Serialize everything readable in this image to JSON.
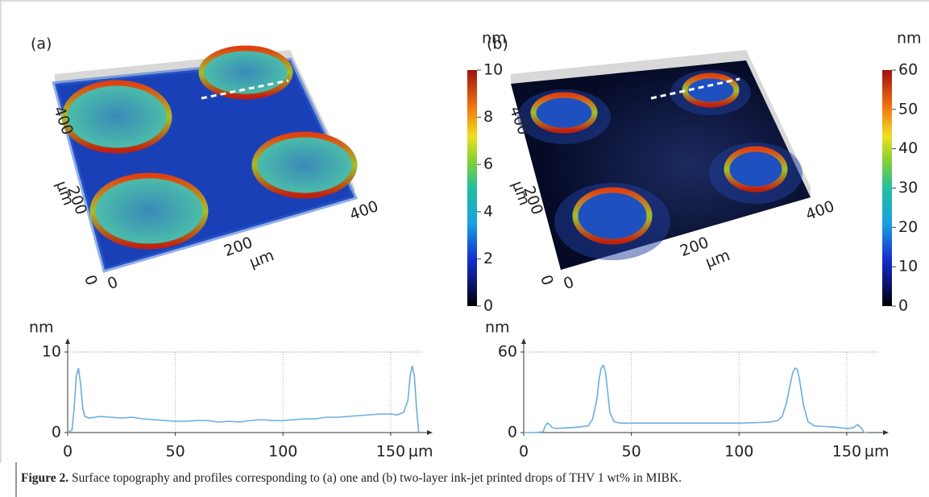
{
  "panels": [
    {
      "label": "(a)",
      "colorbar": {
        "unit": "nm",
        "lim": [
          0,
          10
        ],
        "ticks": [
          0,
          2,
          4,
          6,
          8,
          10
        ]
      },
      "surface": {
        "lim": [
          0,
          400
        ],
        "x_ticks": [
          0,
          200,
          400
        ],
        "y_ticks": [
          0,
          200,
          400
        ],
        "x_unit": "µm",
        "y_unit": "µm"
      }
    },
    {
      "label": "(b)",
      "colorbar": {
        "unit": "nm",
        "lim": [
          0,
          60
        ],
        "ticks": [
          0,
          10,
          20,
          30,
          40,
          50,
          60
        ]
      },
      "surface": {
        "lim": [
          0,
          400
        ],
        "x_ticks": [
          0,
          200,
          400
        ],
        "y_ticks": [
          0,
          200,
          400
        ],
        "x_unit": "µm",
        "y_unit": "µm"
      }
    }
  ],
  "chart_data": [
    {
      "type": "line",
      "xlabel": "µm",
      "ylabel": "nm",
      "color": "#6aaee0",
      "xlim": [
        0,
        165
      ],
      "xticks": [
        0,
        50,
        100,
        150
      ],
      "ylim": [
        0,
        10
      ],
      "yticks": [
        0,
        10
      ],
      "grid": true,
      "x": [
        0,
        2,
        3,
        4,
        5,
        6,
        7,
        8,
        10,
        15,
        20,
        25,
        30,
        35,
        40,
        45,
        50,
        55,
        60,
        65,
        70,
        75,
        80,
        85,
        90,
        95,
        100,
        105,
        110,
        115,
        120,
        125,
        130,
        135,
        140,
        145,
        150,
        153,
        156,
        158,
        159,
        160,
        161,
        162,
        163
      ],
      "values": [
        0,
        0.3,
        3,
        7,
        8,
        6,
        3,
        2,
        1.8,
        2,
        1.9,
        1.8,
        1.9,
        1.7,
        1.6,
        1.5,
        1.4,
        1.4,
        1.5,
        1.5,
        1.3,
        1.4,
        1.3,
        1.5,
        1.6,
        1.5,
        1.5,
        1.6,
        1.7,
        1.7,
        1.9,
        1.9,
        2,
        2.1,
        2.2,
        2.3,
        2.3,
        2.2,
        2.5,
        4,
        7,
        8.3,
        7,
        3,
        0
      ]
    },
    {
      "type": "line",
      "xlabel": "µm",
      "ylabel": "nm",
      "color": "#6aaee0",
      "xlim": [
        0,
        165
      ],
      "xticks": [
        0,
        50,
        100,
        150
      ],
      "ylim": [
        0,
        60
      ],
      "yticks": [
        0,
        60
      ],
      "grid": true,
      "x": [
        0,
        5,
        9,
        10,
        11,
        12,
        13,
        15,
        20,
        25,
        30,
        32,
        34,
        35,
        36,
        37,
        38,
        39,
        40,
        42,
        45,
        50,
        60,
        70,
        80,
        90,
        100,
        110,
        115,
        118,
        120,
        122,
        124,
        125,
        126,
        127,
        128,
        130,
        132,
        135,
        140,
        145,
        150,
        153,
        155,
        157,
        158,
        160
      ],
      "values": [
        0,
        0,
        0.5,
        5,
        7,
        6,
        4,
        3,
        3.5,
        4,
        5,
        10,
        25,
        40,
        48,
        50,
        45,
        30,
        15,
        8,
        7,
        7,
        7,
        7,
        7,
        7,
        7,
        7.5,
        8,
        9,
        12,
        22,
        38,
        45,
        48,
        47,
        40,
        20,
        8,
        5,
        4.5,
        4,
        3,
        3.5,
        6,
        3,
        0,
        0
      ]
    }
  ],
  "caption": {
    "label": "Figure 2.",
    "text": "Surface topography and profiles corresponding to (a) one and (b) two-layer ink-jet printed drops of THV 1 wt% in MIBK."
  }
}
